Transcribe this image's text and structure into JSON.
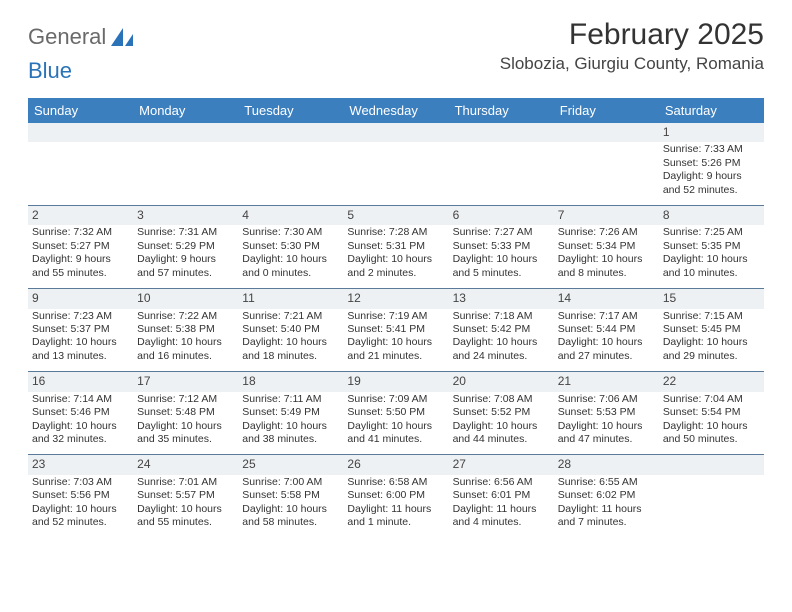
{
  "logo": {
    "text1": "General",
    "text2": "Blue"
  },
  "header": {
    "title": "February 2025",
    "location": "Slobozia, Giurgiu County, Romania"
  },
  "colors": {
    "header_bg": "#3b7fbf",
    "header_text": "#ffffff",
    "daynum_bg": "#eef1f3",
    "rule": "#5a7a9a",
    "text": "#333333"
  },
  "dayNames": [
    "Sunday",
    "Monday",
    "Tuesday",
    "Wednesday",
    "Thursday",
    "Friday",
    "Saturday"
  ],
  "weeks": [
    [
      null,
      null,
      null,
      null,
      null,
      null,
      {
        "n": "1",
        "sr": "Sunrise: 7:33 AM",
        "ss": "Sunset: 5:26 PM",
        "d1": "Daylight: 9 hours",
        "d2": "and 52 minutes."
      }
    ],
    [
      {
        "n": "2",
        "sr": "Sunrise: 7:32 AM",
        "ss": "Sunset: 5:27 PM",
        "d1": "Daylight: 9 hours",
        "d2": "and 55 minutes."
      },
      {
        "n": "3",
        "sr": "Sunrise: 7:31 AM",
        "ss": "Sunset: 5:29 PM",
        "d1": "Daylight: 9 hours",
        "d2": "and 57 minutes."
      },
      {
        "n": "4",
        "sr": "Sunrise: 7:30 AM",
        "ss": "Sunset: 5:30 PM",
        "d1": "Daylight: 10 hours",
        "d2": "and 0 minutes."
      },
      {
        "n": "5",
        "sr": "Sunrise: 7:28 AM",
        "ss": "Sunset: 5:31 PM",
        "d1": "Daylight: 10 hours",
        "d2": "and 2 minutes."
      },
      {
        "n": "6",
        "sr": "Sunrise: 7:27 AM",
        "ss": "Sunset: 5:33 PM",
        "d1": "Daylight: 10 hours",
        "d2": "and 5 minutes."
      },
      {
        "n": "7",
        "sr": "Sunrise: 7:26 AM",
        "ss": "Sunset: 5:34 PM",
        "d1": "Daylight: 10 hours",
        "d2": "and 8 minutes."
      },
      {
        "n": "8",
        "sr": "Sunrise: 7:25 AM",
        "ss": "Sunset: 5:35 PM",
        "d1": "Daylight: 10 hours",
        "d2": "and 10 minutes."
      }
    ],
    [
      {
        "n": "9",
        "sr": "Sunrise: 7:23 AM",
        "ss": "Sunset: 5:37 PM",
        "d1": "Daylight: 10 hours",
        "d2": "and 13 minutes."
      },
      {
        "n": "10",
        "sr": "Sunrise: 7:22 AM",
        "ss": "Sunset: 5:38 PM",
        "d1": "Daylight: 10 hours",
        "d2": "and 16 minutes."
      },
      {
        "n": "11",
        "sr": "Sunrise: 7:21 AM",
        "ss": "Sunset: 5:40 PM",
        "d1": "Daylight: 10 hours",
        "d2": "and 18 minutes."
      },
      {
        "n": "12",
        "sr": "Sunrise: 7:19 AM",
        "ss": "Sunset: 5:41 PM",
        "d1": "Daylight: 10 hours",
        "d2": "and 21 minutes."
      },
      {
        "n": "13",
        "sr": "Sunrise: 7:18 AM",
        "ss": "Sunset: 5:42 PM",
        "d1": "Daylight: 10 hours",
        "d2": "and 24 minutes."
      },
      {
        "n": "14",
        "sr": "Sunrise: 7:17 AM",
        "ss": "Sunset: 5:44 PM",
        "d1": "Daylight: 10 hours",
        "d2": "and 27 minutes."
      },
      {
        "n": "15",
        "sr": "Sunrise: 7:15 AM",
        "ss": "Sunset: 5:45 PM",
        "d1": "Daylight: 10 hours",
        "d2": "and 29 minutes."
      }
    ],
    [
      {
        "n": "16",
        "sr": "Sunrise: 7:14 AM",
        "ss": "Sunset: 5:46 PM",
        "d1": "Daylight: 10 hours",
        "d2": "and 32 minutes."
      },
      {
        "n": "17",
        "sr": "Sunrise: 7:12 AM",
        "ss": "Sunset: 5:48 PM",
        "d1": "Daylight: 10 hours",
        "d2": "and 35 minutes."
      },
      {
        "n": "18",
        "sr": "Sunrise: 7:11 AM",
        "ss": "Sunset: 5:49 PM",
        "d1": "Daylight: 10 hours",
        "d2": "and 38 minutes."
      },
      {
        "n": "19",
        "sr": "Sunrise: 7:09 AM",
        "ss": "Sunset: 5:50 PM",
        "d1": "Daylight: 10 hours",
        "d2": "and 41 minutes."
      },
      {
        "n": "20",
        "sr": "Sunrise: 7:08 AM",
        "ss": "Sunset: 5:52 PM",
        "d1": "Daylight: 10 hours",
        "d2": "and 44 minutes."
      },
      {
        "n": "21",
        "sr": "Sunrise: 7:06 AM",
        "ss": "Sunset: 5:53 PM",
        "d1": "Daylight: 10 hours",
        "d2": "and 47 minutes."
      },
      {
        "n": "22",
        "sr": "Sunrise: 7:04 AM",
        "ss": "Sunset: 5:54 PM",
        "d1": "Daylight: 10 hours",
        "d2": "and 50 minutes."
      }
    ],
    [
      {
        "n": "23",
        "sr": "Sunrise: 7:03 AM",
        "ss": "Sunset: 5:56 PM",
        "d1": "Daylight: 10 hours",
        "d2": "and 52 minutes."
      },
      {
        "n": "24",
        "sr": "Sunrise: 7:01 AM",
        "ss": "Sunset: 5:57 PM",
        "d1": "Daylight: 10 hours",
        "d2": "and 55 minutes."
      },
      {
        "n": "25",
        "sr": "Sunrise: 7:00 AM",
        "ss": "Sunset: 5:58 PM",
        "d1": "Daylight: 10 hours",
        "d2": "and 58 minutes."
      },
      {
        "n": "26",
        "sr": "Sunrise: 6:58 AM",
        "ss": "Sunset: 6:00 PM",
        "d1": "Daylight: 11 hours",
        "d2": "and 1 minute."
      },
      {
        "n": "27",
        "sr": "Sunrise: 6:56 AM",
        "ss": "Sunset: 6:01 PM",
        "d1": "Daylight: 11 hours",
        "d2": "and 4 minutes."
      },
      {
        "n": "28",
        "sr": "Sunrise: 6:55 AM",
        "ss": "Sunset: 6:02 PM",
        "d1": "Daylight: 11 hours",
        "d2": "and 7 minutes."
      },
      null
    ]
  ]
}
